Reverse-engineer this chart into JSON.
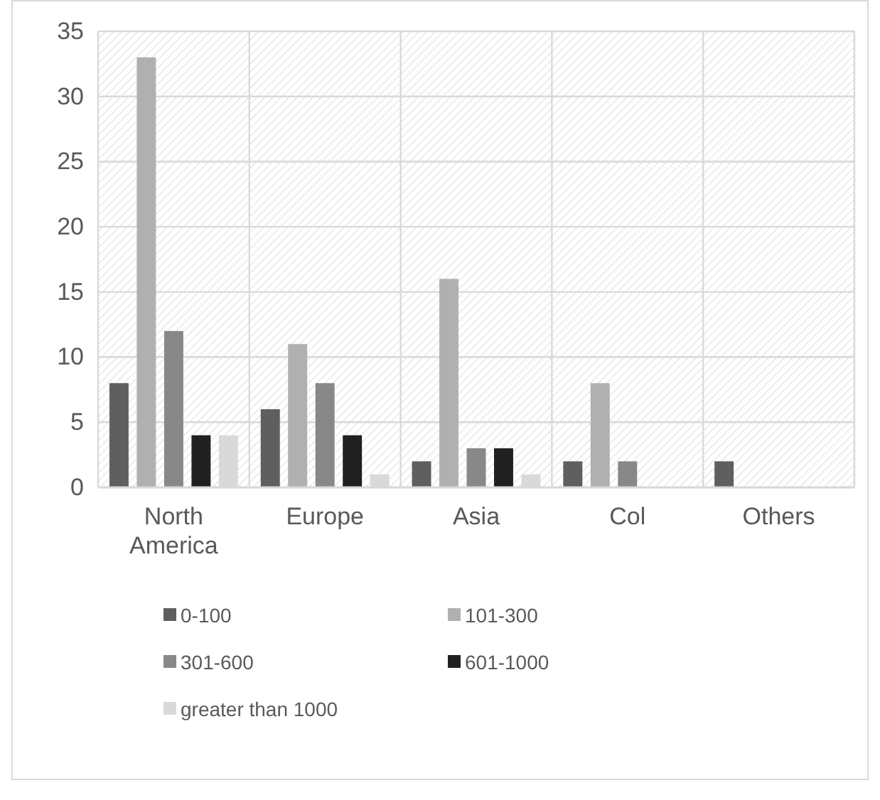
{
  "chart_data": {
    "type": "bar",
    "categories": [
      "North America",
      "Europe",
      "Asia",
      "Col",
      "Others"
    ],
    "series": [
      {
        "name": "0-100",
        "color": "#5f5f5f",
        "values": [
          8,
          6,
          2,
          2,
          2
        ]
      },
      {
        "name": "101-300",
        "color": "#b0b0b0",
        "values": [
          33,
          11,
          16,
          8,
          0
        ]
      },
      {
        "name": "301-600",
        "color": "#888888",
        "values": [
          12,
          8,
          3,
          2,
          0
        ]
      },
      {
        "name": "601-1000",
        "color": "#202020",
        "values": [
          4,
          4,
          3,
          0,
          0
        ]
      },
      {
        "name": "greater than 1000",
        "color": "#d9d9d9",
        "values": [
          4,
          1,
          1,
          0,
          0
        ]
      }
    ],
    "ylim": [
      0,
      35
    ],
    "yticks": [
      0,
      5,
      10,
      15,
      20,
      25,
      30,
      35
    ],
    "grid": true,
    "legend": "bottom"
  }
}
